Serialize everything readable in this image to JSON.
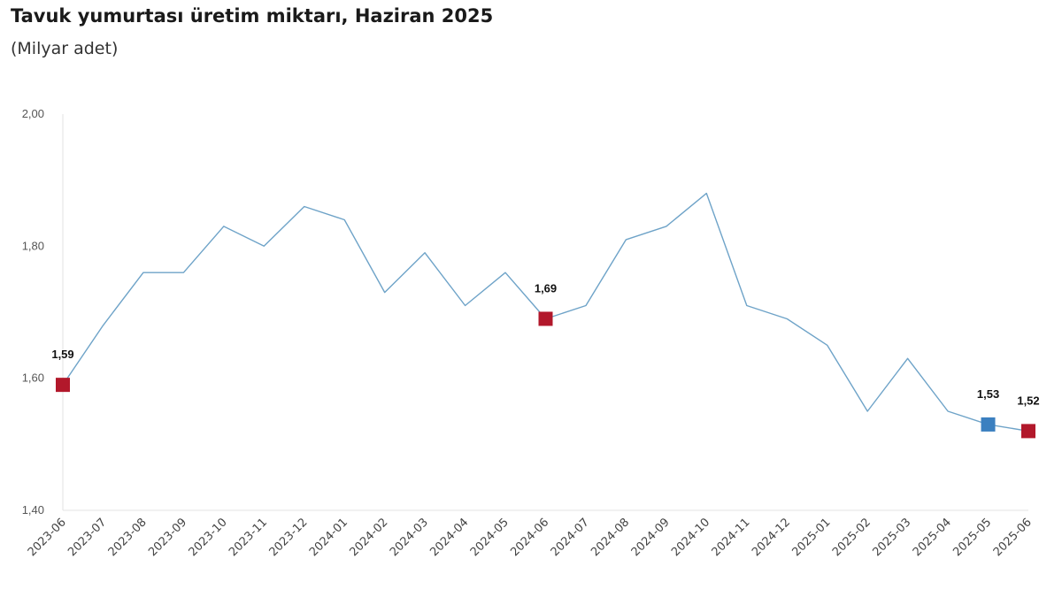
{
  "title": "Tavuk yumurtası üretim miktarı, Haziran 2025",
  "subtitle": "(Milyar adet)",
  "chart_data": {
    "type": "line",
    "x": [
      "2023-06",
      "2023-07",
      "2023-08",
      "2023-09",
      "2023-10",
      "2023-11",
      "2023-12",
      "2024-01",
      "2024-02",
      "2024-03",
      "2024-04",
      "2024-05",
      "2024-06",
      "2024-07",
      "2024-08",
      "2024-09",
      "2024-10",
      "2024-11",
      "2024-12",
      "2025-01",
      "2025-02",
      "2025-03",
      "2025-04",
      "2025-05",
      "2025-06"
    ],
    "series": [
      {
        "values": [
          1.59,
          1.68,
          1.76,
          1.76,
          1.83,
          1.8,
          1.86,
          1.84,
          1.73,
          1.79,
          1.71,
          1.76,
          1.69,
          1.71,
          1.81,
          1.83,
          1.88,
          1.71,
          1.69,
          1.65,
          1.55,
          1.63,
          1.55,
          1.53,
          1.52
        ],
        "color": "#6ea3c8"
      }
    ],
    "ylim": [
      1.4,
      2.0
    ],
    "yticks": [
      "1,40",
      "1,60",
      "1,80",
      "2,00"
    ],
    "ytick_values": [
      1.4,
      1.6,
      1.8,
      2.0
    ],
    "grid": false,
    "highlights": [
      {
        "x": "2023-06",
        "label": "1,59",
        "color": "#b2182b"
      },
      {
        "x": "2024-06",
        "label": "1,69",
        "color": "#b2182b"
      },
      {
        "x": "2025-05",
        "label": "1,53",
        "color": "#3b80c0"
      },
      {
        "x": "2025-06",
        "label": "1,52",
        "color": "#b2182b"
      }
    ]
  }
}
